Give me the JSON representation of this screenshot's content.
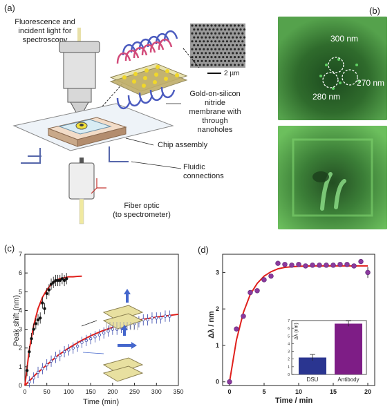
{
  "panels": {
    "a": {
      "label": "(a)",
      "fluor_text": "Fluorescence and\nincident light for\nspectroscopy",
      "membrane_text": "Gold-on-silicon\nnitride\nmembrane with\nthrough\nnanoholes",
      "chip_text": "Chip assembly",
      "fluidic_text": "Fluidic\nconnections",
      "fiber_text": "Fiber optic\n(to spectrometer)",
      "scale_text": "2 µm"
    },
    "b": {
      "label": "(b)",
      "hole_labels": [
        "300 nm",
        "280 nm",
        "270 nm"
      ]
    },
    "c": {
      "label": "(c)",
      "ylabel": "Peak shift (nm)",
      "xlabel": "Time (min)"
    },
    "d": {
      "label": "(d)",
      "ylabel": "Δλ / nm",
      "xlabel": "Time / min",
      "inset_ylabel": "Δλ (nm)",
      "inset_categories": [
        "DSU",
        "Antibody"
      ]
    }
  },
  "colors": {
    "fit": "#e0201c",
    "series_a": "#111111",
    "series_b": "#3344aa",
    "points_d": "#8b3a9e",
    "bar_dsu": "#2a3590",
    "bar_antibody": "#7e1d86",
    "micro_bg": "#3d8c3a"
  },
  "chart_data": [
    {
      "id": "c",
      "type": "scatter",
      "xlim": [
        0,
        350
      ],
      "ylim": [
        0,
        7
      ],
      "xticks": [
        0,
        50,
        100,
        150,
        200,
        250,
        300,
        350
      ],
      "yticks": [
        0,
        1,
        2,
        3,
        4,
        5,
        6,
        7
      ],
      "series": [
        {
          "x": [
            5,
            10,
            15,
            20,
            25,
            30,
            35,
            40,
            45,
            50,
            55,
            60,
            65,
            70,
            75,
            80,
            85,
            90,
            95
          ],
          "values": [
            0.8,
            1.8,
            2.5,
            3.0,
            3.3,
            3.5,
            3.6,
            4.4,
            4.1,
            4.9,
            5.1,
            5.4,
            5.5,
            5.6,
            5.6,
            5.6,
            5.7,
            5.6,
            5.7
          ]
        },
        {
          "x": [
            10,
            20,
            30,
            40,
            50,
            60,
            70,
            80,
            90,
            100,
            110,
            120,
            130,
            140,
            150,
            160,
            170,
            180,
            190,
            200,
            210,
            220,
            230,
            240,
            250,
            260,
            270,
            280,
            290,
            300,
            310,
            320,
            330
          ],
          "values": [
            0.2,
            0.4,
            0.7,
            0.9,
            1.1,
            1.3,
            1.5,
            1.6,
            1.8,
            1.9,
            2.0,
            2.1,
            2.3,
            2.4,
            2.5,
            2.6,
            2.7,
            2.8,
            2.9,
            3.0,
            3.0,
            3.1,
            3.2,
            3.3,
            3.3,
            3.4,
            3.5,
            3.5,
            3.6,
            3.6,
            3.6,
            3.7,
            3.7
          ]
        }
      ],
      "fits": [
        {
          "x": [
            0,
            10,
            20,
            30,
            40,
            50,
            60,
            70,
            80,
            90,
            100,
            110,
            120,
            130
          ],
          "values": [
            0,
            1.9,
            3.2,
            4.1,
            4.7,
            5.1,
            5.4,
            5.6,
            5.7,
            5.75,
            5.8,
            5.8,
            5.82,
            5.83
          ]
        },
        {
          "x": [
            0,
            25,
            50,
            75,
            100,
            125,
            150,
            175,
            200,
            225,
            250,
            275,
            300,
            325,
            350
          ],
          "values": [
            0,
            0.6,
            1.1,
            1.6,
            2.0,
            2.35,
            2.65,
            2.9,
            3.1,
            3.3,
            3.45,
            3.55,
            3.65,
            3.72,
            3.8
          ]
        }
      ]
    },
    {
      "id": "d",
      "type": "scatter",
      "xlim": [
        -1,
        21
      ],
      "ylim": [
        -0.1,
        3.5
      ],
      "xticks": [
        0,
        5,
        10,
        15,
        20
      ],
      "yticks": [
        0,
        1,
        2,
        3
      ],
      "x": [
        0,
        1,
        2,
        3,
        4,
        5,
        6,
        7,
        8,
        9,
        10,
        11,
        12,
        13,
        14,
        15,
        16,
        17,
        18,
        19,
        20
      ],
      "values": [
        0,
        1.45,
        1.8,
        2.45,
        2.5,
        2.8,
        2.9,
        3.25,
        3.22,
        3.2,
        3.22,
        3.18,
        3.2,
        3.2,
        3.2,
        3.2,
        3.22,
        3.22,
        3.18,
        3.3,
        3.0
      ],
      "fit": {
        "x": [
          0,
          1,
          2,
          3,
          4,
          5,
          6,
          7,
          8,
          10,
          12,
          14,
          16,
          18,
          20
        ],
        "values": [
          0,
          1.15,
          1.9,
          2.4,
          2.7,
          2.9,
          3.02,
          3.1,
          3.14,
          3.17,
          3.18,
          3.18,
          3.18,
          3.18,
          3.18
        ]
      },
      "inset": {
        "type": "bar",
        "categories": [
          "DSU",
          "Antibody"
        ],
        "values": [
          2.2,
          6.6
        ],
        "errors": [
          0.4,
          0.35
        ],
        "ylim": [
          0,
          7
        ],
        "yticks": [
          0,
          1,
          2,
          3,
          4,
          5,
          6,
          7
        ]
      }
    }
  ]
}
